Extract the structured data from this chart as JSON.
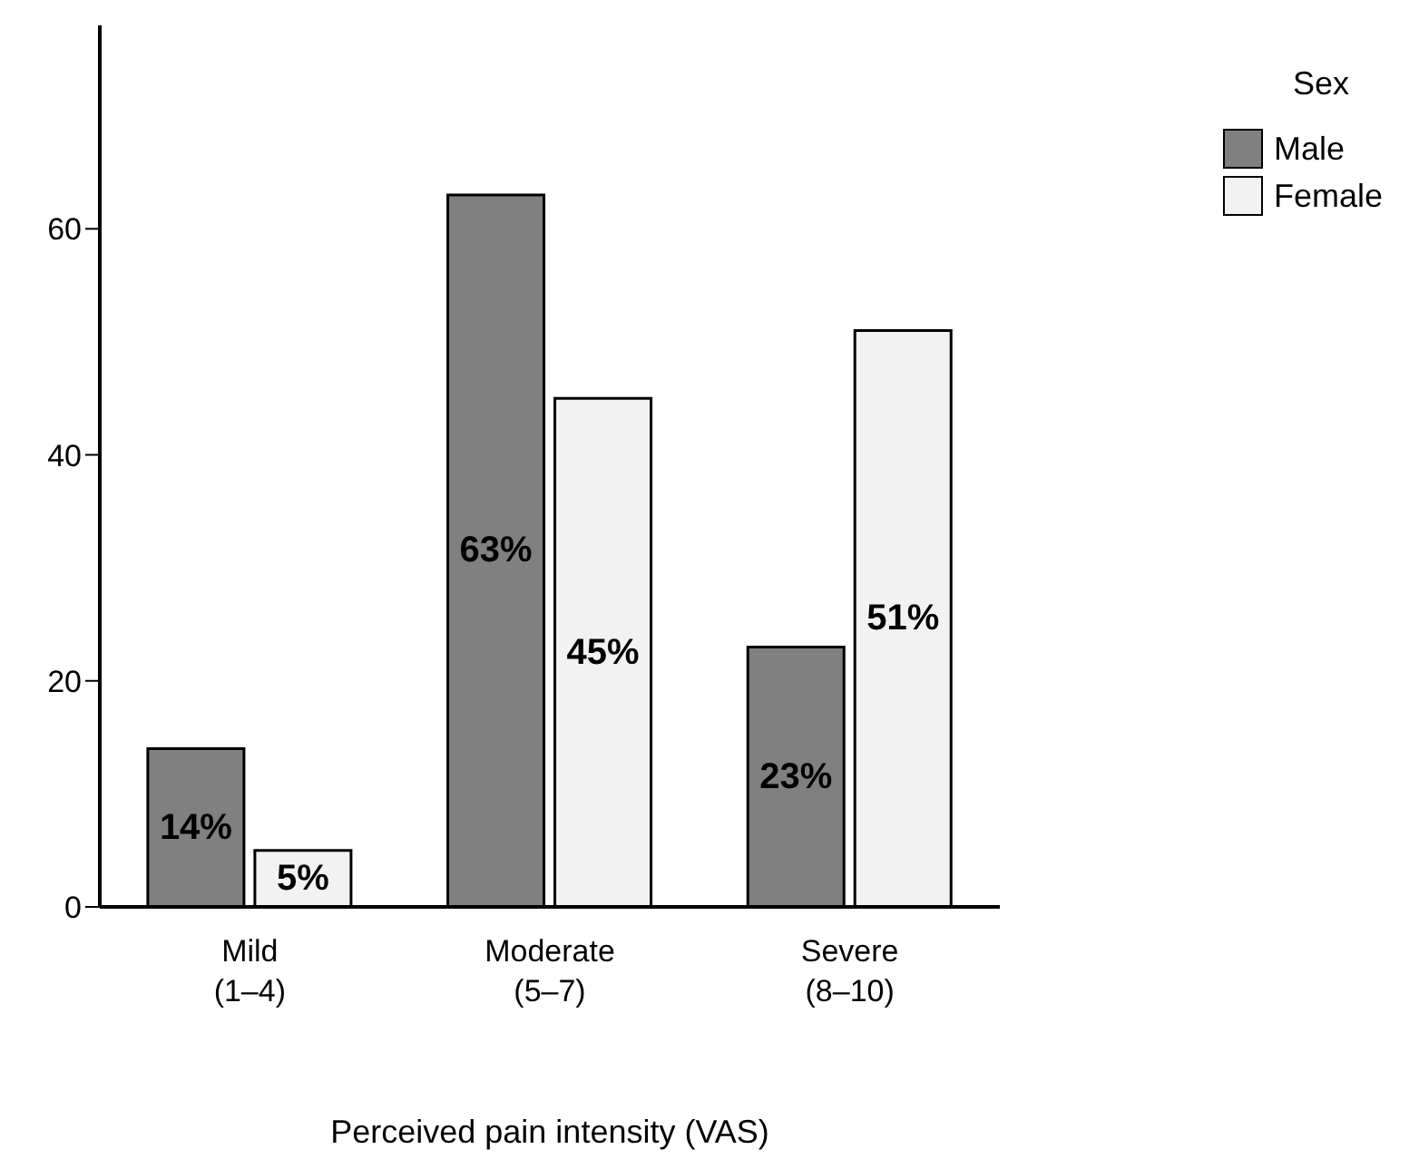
{
  "chart_data": {
    "type": "bar",
    "xlabel": "Perceived pain intensity (VAS)",
    "legend_title": "Sex",
    "categories": [
      "Mild\n(1–4)",
      "Moderate\n(5–7)",
      "Severe\n(8–10)"
    ],
    "series": [
      {
        "name": "Male",
        "color": "#808080",
        "values": [
          14,
          63,
          23
        ],
        "value_labels": [
          "14%",
          "63%",
          "23%"
        ]
      },
      {
        "name": "Female",
        "color": "#f2f2f2",
        "values": [
          5,
          45,
          51
        ],
        "value_labels": [
          "5%",
          "45%",
          "51%"
        ]
      }
    ],
    "ylim": [
      0,
      78
    ],
    "yticks": [
      0,
      20,
      40,
      60
    ],
    "grid": false,
    "legend": "top right"
  }
}
